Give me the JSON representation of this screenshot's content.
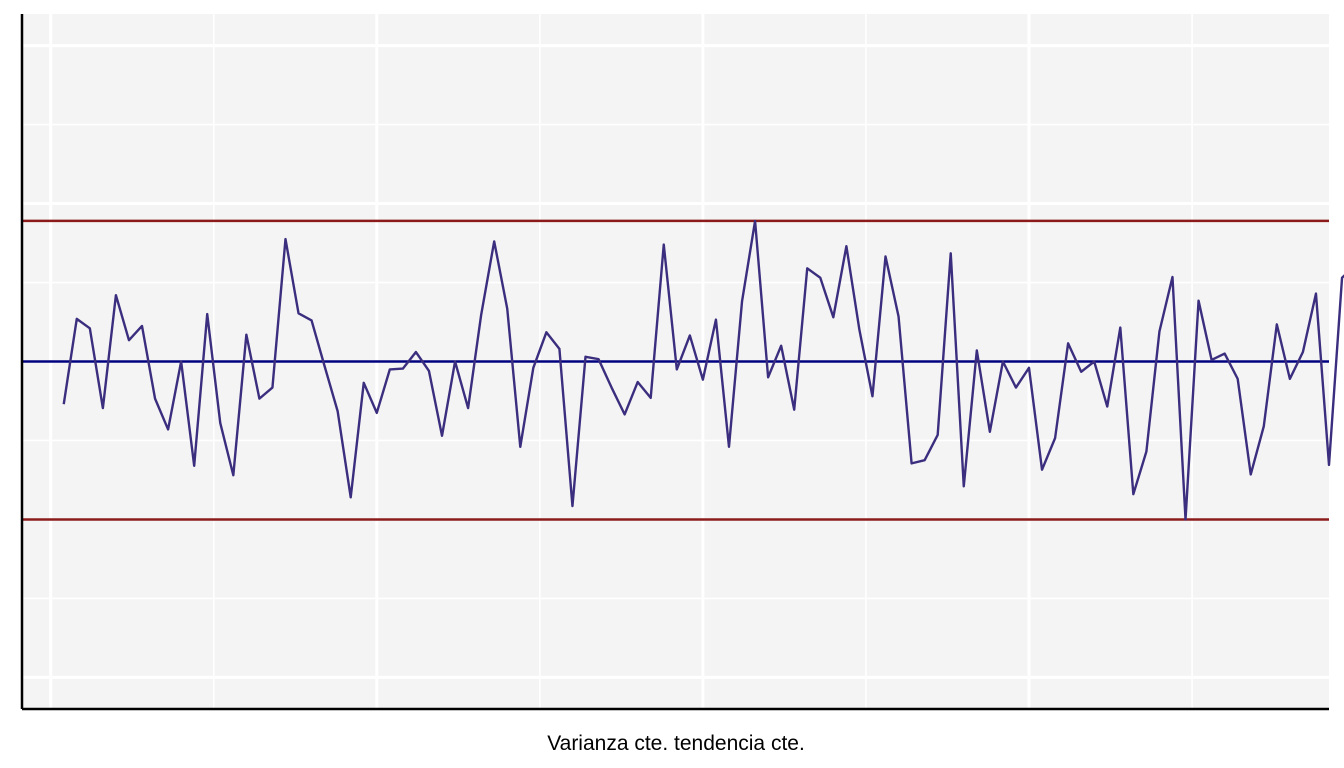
{
  "colors": {
    "background": "#ffffff",
    "panel": "#f4f4f4",
    "grid": "#ffffff",
    "series": "#3b2e7e",
    "mean_line": "#00007f",
    "control_limits": "#8b1a1a",
    "axis": "#000000"
  },
  "chart_data": {
    "type": "line",
    "title": "",
    "xlabel": "Varianza cte. tendencia cte.",
    "ylabel": "",
    "xlim": [
      -2.2,
      98
    ],
    "ylim": [
      -4.4,
      4.4
    ],
    "grid": true,
    "legend": "none",
    "axis_ticks_shown": false,
    "mean": 0,
    "upper_limit": 1.78,
    "lower_limit": -2,
    "x": [
      1,
      2,
      3,
      4,
      5,
      6,
      7,
      8,
      9,
      10,
      11,
      12,
      13,
      14,
      15,
      16,
      17,
      18,
      19,
      20,
      21,
      22,
      23,
      24,
      25,
      26,
      27,
      28,
      29,
      30,
      31,
      32,
      33,
      34,
      35,
      36,
      37,
      38,
      39,
      40,
      41,
      42,
      43,
      44,
      45,
      46,
      47,
      48,
      49,
      50,
      51,
      52,
      53,
      54,
      55,
      56,
      57,
      58,
      59,
      60,
      61,
      62,
      63,
      64,
      65,
      66,
      67,
      68,
      69,
      70,
      71,
      72,
      73,
      74,
      75,
      76,
      77,
      78,
      79,
      80,
      81,
      82,
      83,
      84,
      85,
      86,
      87,
      88,
      89,
      90,
      91,
      92,
      93,
      94,
      95,
      96,
      97,
      98,
      99,
      100
    ],
    "series": [
      {
        "values": [
          -0.54,
          0.54,
          0.42,
          -0.59,
          0.84,
          0.27,
          0.45,
          -0.47,
          -0.86,
          0.0,
          -1.32,
          0.6,
          -0.78,
          -1.44,
          0.34,
          -0.47,
          -0.33,
          1.55,
          0.61,
          0.52,
          -0.06,
          -0.63,
          -1.72,
          -0.27,
          -0.65,
          -0.1,
          -0.09,
          0.12,
          -0.12,
          -0.94,
          0.0,
          -0.59,
          0.59,
          1.52,
          0.67,
          -1.08,
          -0.08,
          0.37,
          0.16,
          -1.83,
          0.06,
          0.03,
          -0.33,
          -0.67,
          -0.26,
          -0.46,
          1.48,
          -0.1,
          0.33,
          -0.23,
          0.53,
          -1.08,
          0.76,
          1.78,
          -0.2,
          0.2,
          -0.61,
          1.18,
          1.06,
          0.56,
          1.46,
          0.4,
          -0.44,
          1.33,
          0.57,
          -1.29,
          -1.25,
          -0.93,
          1.37,
          -1.58,
          0.14,
          -0.89,
          0.0,
          -0.33,
          -0.08,
          -1.37,
          -0.97,
          0.23,
          -0.13,
          0.0,
          -0.57,
          0.43,
          -1.68,
          -1.14,
          0.38,
          1.07,
          -2.0,
          0.77,
          0.02,
          0.1,
          -0.22,
          -1.43,
          -0.82,
          0.47,
          -0.22,
          0.12,
          0.86,
          -1.31,
          1.06,
          1.22
        ]
      }
    ]
  }
}
